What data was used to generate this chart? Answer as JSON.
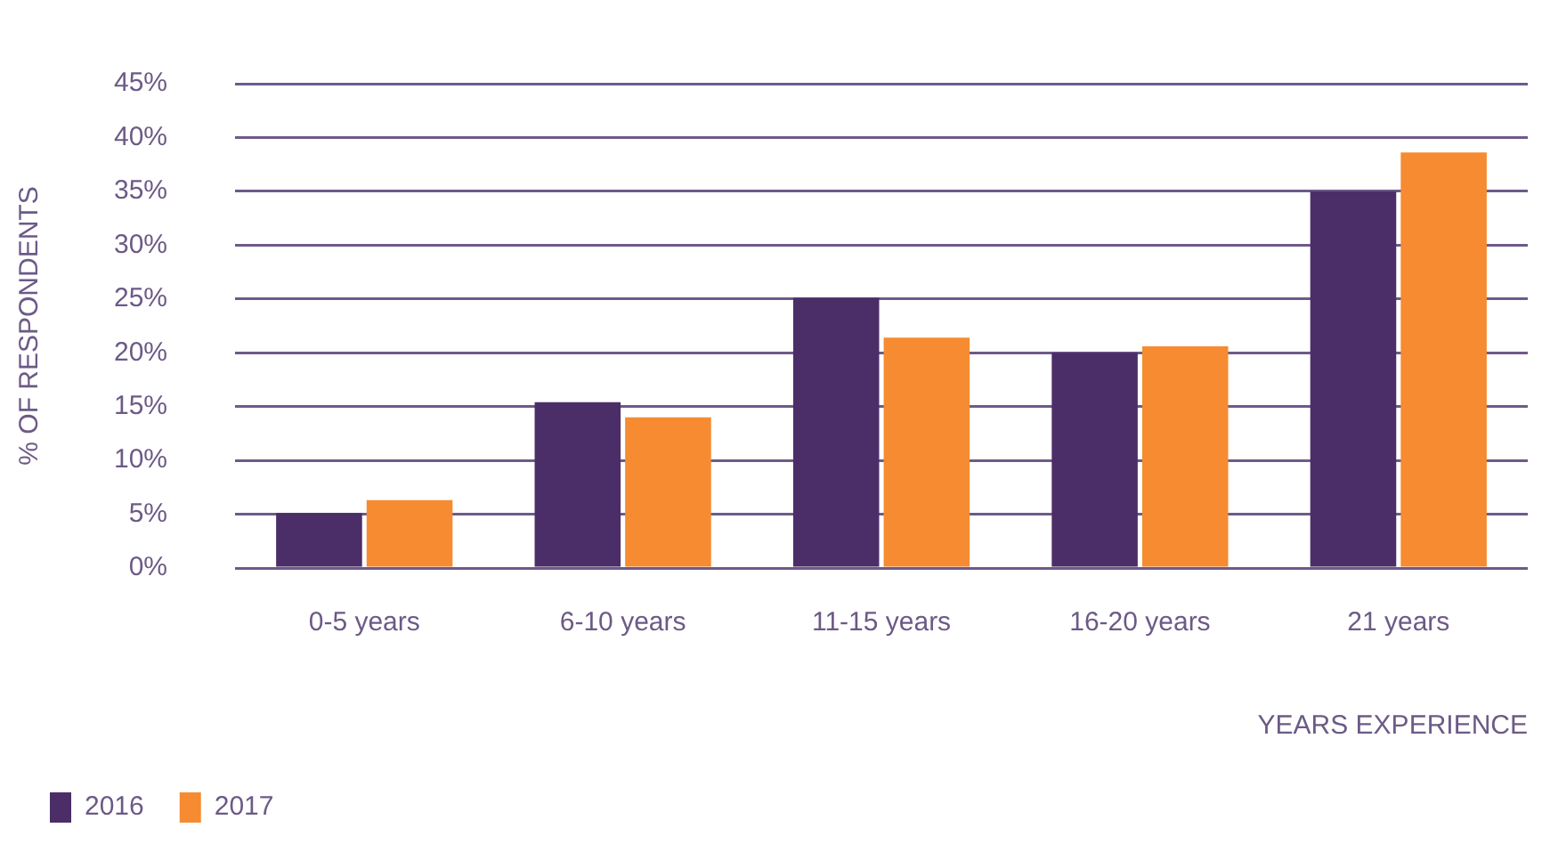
{
  "chart_data": {
    "type": "bar",
    "xlabel": "YEARS EXPERIENCE",
    "ylabel": "% OF RESPONDENTS",
    "categories": [
      "0-5 years",
      "6-10 years",
      "11-15 years",
      "16-20 years",
      "21 years"
    ],
    "series": [
      {
        "name": "2016",
        "color": "#4b2e67",
        "values": [
          5.1,
          15.4,
          25.1,
          20.0,
          35.0
        ]
      },
      {
        "name": "2017",
        "color": "#f68b31",
        "values": [
          6.3,
          14.0,
          21.4,
          20.6,
          38.6
        ]
      }
    ],
    "ylim": [
      0,
      45
    ],
    "yticks": [
      {
        "value": 0,
        "label": "0%"
      },
      {
        "value": 5,
        "label": "5%"
      },
      {
        "value": 10,
        "label": "10%"
      },
      {
        "value": 15,
        "label": "15%"
      },
      {
        "value": 20,
        "label": "20%"
      },
      {
        "value": 25,
        "label": "25%"
      },
      {
        "value": 30,
        "label": "30%"
      },
      {
        "value": 35,
        "label": "35%"
      },
      {
        "value": 40,
        "label": "40%"
      },
      {
        "value": 45,
        "label": "45%"
      }
    ],
    "grid": "y",
    "legend": "bottom left"
  }
}
